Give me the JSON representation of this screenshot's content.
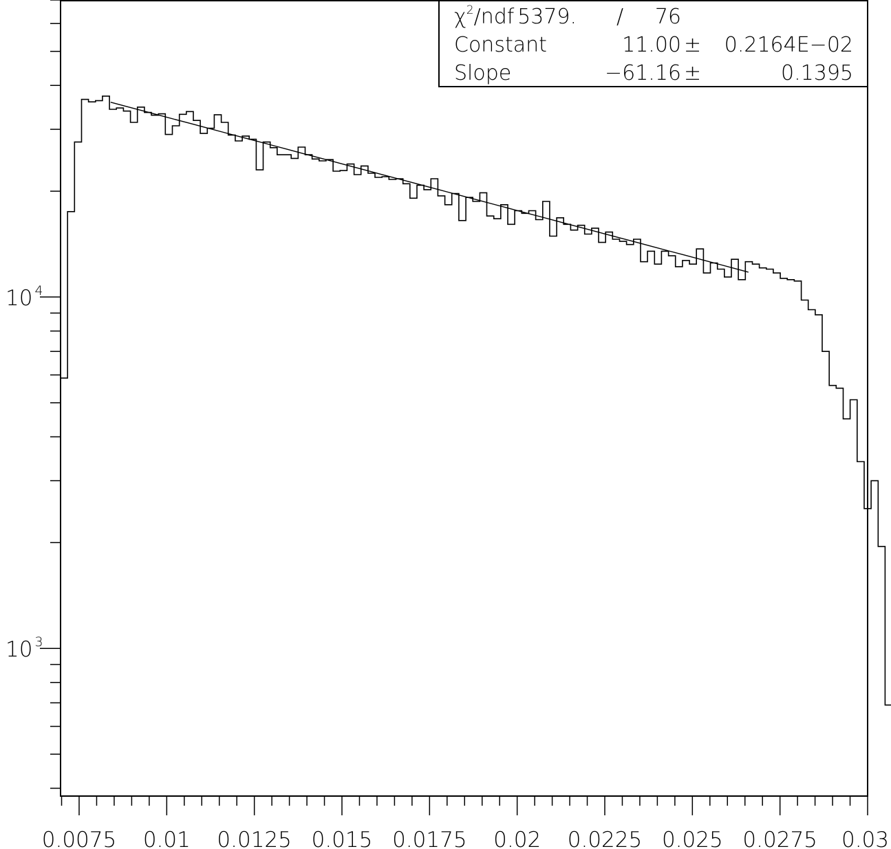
{
  "chart_data": {
    "type": "histogram",
    "x_axis": {
      "range": [
        0.00697,
        0.03
      ],
      "tick_labels": [
        "0.0075",
        "0.01",
        "0.0125",
        "0.015",
        "0.0175",
        "0.02",
        "0.0225",
        "0.025",
        "0.0275",
        "0.03"
      ],
      "tick_values": [
        0.0075,
        0.01,
        0.0125,
        0.015,
        0.0175,
        0.02,
        0.0225,
        0.025,
        0.0275,
        0.03
      ]
    },
    "y_axis": {
      "scale": "log",
      "range": [
        380,
        70000
      ],
      "tick_labels": [
        {
          "base": "10",
          "exp": "4",
          "value": 10000
        },
        {
          "base": "10",
          "exp": "3",
          "value": 1000
        }
      ]
    },
    "histogram": {
      "bin_edges_start": 0.00697,
      "bin_width": 0.0001994,
      "values": [
        5880,
        17500,
        27600,
        36500,
        35900,
        36200,
        37300,
        34200,
        34500,
        33800,
        31400,
        34700,
        33500,
        32900,
        33200,
        29000,
        30700,
        33100,
        33700,
        31800,
        29200,
        30200,
        33000,
        31400,
        28900,
        27800,
        28700,
        28100,
        23000,
        27600,
        26600,
        25400,
        25400,
        24800,
        26700,
        25400,
        24700,
        24400,
        24600,
        22800,
        22900,
        23900,
        22300,
        23600,
        22500,
        21900,
        22000,
        21600,
        21700,
        21000,
        19100,
        20800,
        20200,
        21700,
        19400,
        18300,
        19700,
        16500,
        19200,
        18700,
        19800,
        17000,
        16700,
        18300,
        16100,
        17600,
        17300,
        17600,
        16600,
        18700,
        14900,
        16800,
        16100,
        15500,
        16000,
        15100,
        15700,
        14300,
        15300,
        14600,
        14400,
        14100,
        14600,
        12600,
        13500,
        12400,
        13500,
        13100,
        12200,
        12700,
        12400,
        13700,
        11700,
        12500,
        12000,
        11400,
        12800,
        11200,
        12600,
        12400,
        12100,
        12000,
        11700,
        11300,
        11200,
        11100,
        9800,
        9200,
        8900,
        7000,
        5600,
        5500,
        4500,
        5100,
        3400,
        2500,
        3000,
        1950,
        690,
        740
      ]
    },
    "fit": {
      "function": "exp(Constant + Slope*x)",
      "constant": 11.0,
      "slope": -61.16,
      "x_range": [
        0.0084,
        0.0266
      ]
    },
    "stats_box": {
      "chi2_label_main": "χ",
      "chi2_label_sup": "2",
      "chi2_label_rest": "/ndf",
      "chi2_value": "5379.",
      "chi2_sep": "/",
      "ndf_value": "76",
      "rows": [
        {
          "name": "Constant",
          "value": "11.00",
          "pm": "±",
          "error": "0.2164E−02"
        },
        {
          "name": "Slope",
          "value": "−61.16",
          "pm": "±",
          "error": "0.1395"
        }
      ]
    }
  }
}
